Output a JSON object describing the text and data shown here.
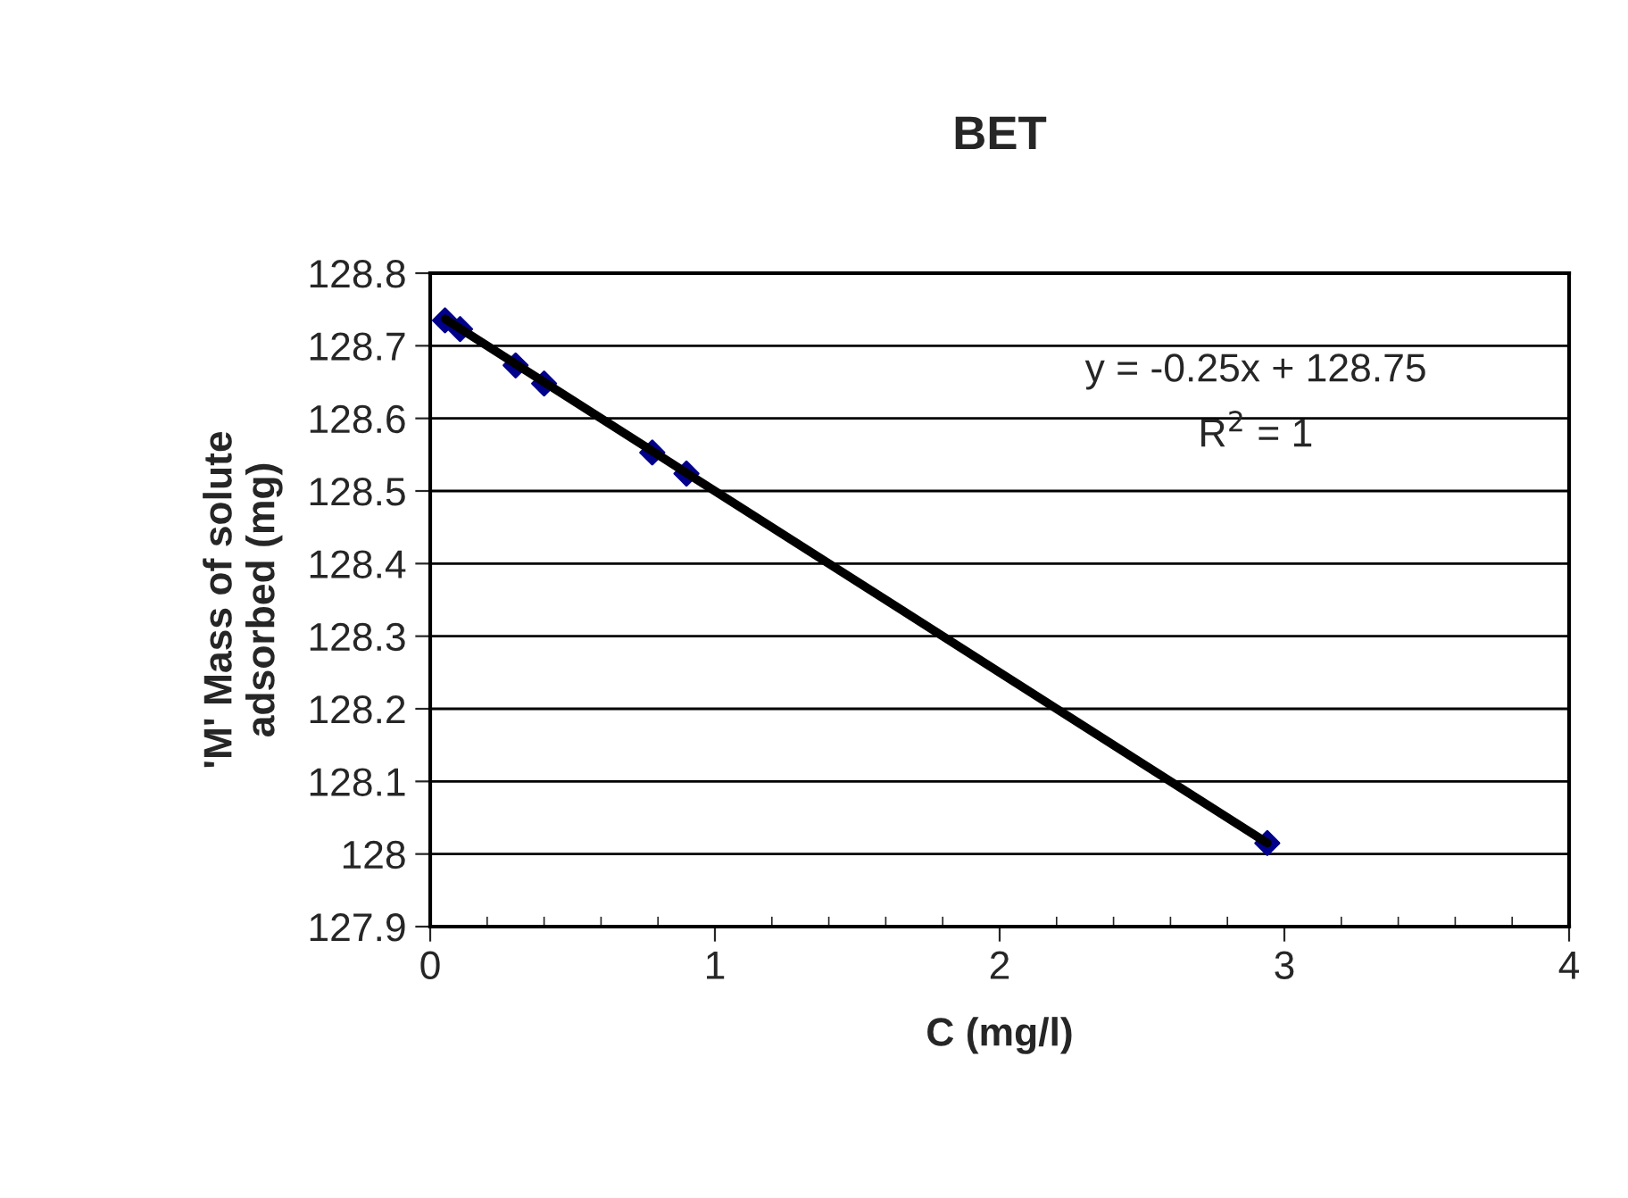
{
  "chart_data": {
    "type": "scatter",
    "title": "BET",
    "xlabel": "C (mg/l)",
    "ylabel": "'M' Mass of solute\nadsorbed (mg)",
    "series": [
      {
        "color": "#00008b",
        "marker": "diamond",
        "x": [
          0.052,
          0.105,
          0.3,
          0.4,
          0.78,
          0.9,
          2.94
        ],
        "values": [
          128.735,
          128.723,
          128.673,
          128.648,
          128.553,
          128.524,
          128.015
        ]
      },
      {
        "type": "line",
        "color": "#000000",
        "marker": "none",
        "line_style": "solid",
        "x": [
          0.052,
          2.94
        ],
        "values": [
          128.737,
          128.015
        ]
      }
    ],
    "annotations": [
      "y = -0.25x + 128.75",
      "R$^{2}$ = 1"
    ],
    "xlim": [
      0,
      4
    ],
    "xticks": [
      0,
      1,
      2,
      3,
      4
    ],
    "ylim": [
      127.9,
      128.8
    ],
    "yticks": [
      {
        "value": 127.9,
        "label": "127.9"
      },
      {
        "value": 128,
        "label": "128"
      },
      {
        "value": 128.1,
        "label": "128.1"
      },
      {
        "value": 128.2,
        "label": "128.2"
      },
      {
        "value": 128.3,
        "label": "128.3"
      },
      {
        "value": 128.4,
        "label": "128.4"
      },
      {
        "value": 128.5,
        "label": "128.5"
      },
      {
        "value": 128.6,
        "label": "128.6"
      },
      {
        "value": 128.7,
        "label": "128.7"
      },
      {
        "value": 128.8,
        "label": "128.8"
      }
    ],
    "grid": "y",
    "legend": false
  }
}
